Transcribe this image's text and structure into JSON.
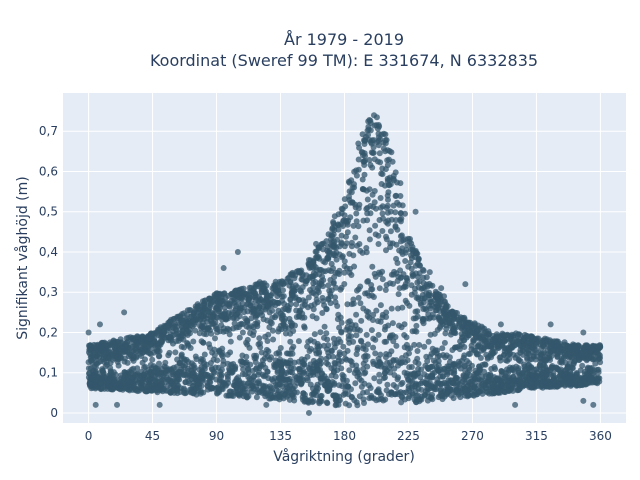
{
  "chart_data": {
    "type": "scatter",
    "title_line1": "År 1979 - 2019",
    "title_line2": "Koordinat (Sweref 99 TM): E 331674, N 6332835",
    "xlabel": "Vågriktning (grader)",
    "ylabel": "Signifikant våghöjd (m)",
    "xlim": [
      -18,
      378
    ],
    "ylim": [
      -0.025,
      0.795
    ],
    "x_ticks": [
      0,
      45,
      90,
      135,
      180,
      225,
      270,
      315,
      360
    ],
    "x_tick_labels": [
      "0",
      "45",
      "90",
      "135",
      "180",
      "225",
      "270",
      "315",
      "360"
    ],
    "y_ticks": [
      0,
      0.1,
      0.2,
      0.3,
      0.4,
      0.5,
      0.6,
      0.7
    ],
    "y_tick_labels": [
      "0",
      "0,1",
      "0,2",
      "0,3",
      "0,4",
      "0,5",
      "0,6",
      "0,7"
    ],
    "grid": true,
    "marker_color": "#34576c",
    "plot_bg": "#e5ecf6",
    "upper_envelope": [
      [
        0,
        0.17
      ],
      [
        15,
        0.18
      ],
      [
        30,
        0.19
      ],
      [
        45,
        0.2
      ],
      [
        60,
        0.24
      ],
      [
        75,
        0.27
      ],
      [
        90,
        0.3
      ],
      [
        105,
        0.31
      ],
      [
        120,
        0.33
      ],
      [
        135,
        0.33
      ],
      [
        150,
        0.37
      ],
      [
        165,
        0.43
      ],
      [
        180,
        0.55
      ],
      [
        190,
        0.68
      ],
      [
        200,
        0.76
      ],
      [
        210,
        0.7
      ],
      [
        220,
        0.57
      ],
      [
        225,
        0.45
      ],
      [
        240,
        0.33
      ],
      [
        255,
        0.26
      ],
      [
        270,
        0.23
      ],
      [
        285,
        0.2
      ],
      [
        300,
        0.2
      ],
      [
        315,
        0.19
      ],
      [
        330,
        0.18
      ],
      [
        345,
        0.17
      ],
      [
        360,
        0.17
      ]
    ],
    "lower_envelope": [
      [
        0,
        0.06
      ],
      [
        45,
        0.05
      ],
      [
        90,
        0.04
      ],
      [
        135,
        0.03
      ],
      [
        180,
        0.01
      ],
      [
        225,
        0.02
      ],
      [
        270,
        0.04
      ],
      [
        315,
        0.06
      ],
      [
        360,
        0.07
      ]
    ],
    "outliers": [
      [
        0,
        0.2
      ],
      [
        8,
        0.22
      ],
      [
        25,
        0.25
      ],
      [
        105,
        0.4
      ],
      [
        95,
        0.36
      ],
      [
        248,
        0.31
      ],
      [
        265,
        0.32
      ],
      [
        290,
        0.22
      ],
      [
        325,
        0.22
      ],
      [
        348,
        0.2
      ],
      [
        348,
        0.03
      ],
      [
        355,
        0.02
      ],
      [
        5,
        0.02
      ],
      [
        20,
        0.02
      ],
      [
        50,
        0.02
      ],
      [
        125,
        0.02
      ],
      [
        155,
        0.0
      ],
      [
        300,
        0.02
      ],
      [
        230,
        0.5
      ],
      [
        232,
        0.38
      ],
      [
        240,
        0.35
      ],
      [
        250,
        0.29
      ],
      [
        160,
        0.42
      ],
      [
        155,
        0.38
      ]
    ]
  }
}
